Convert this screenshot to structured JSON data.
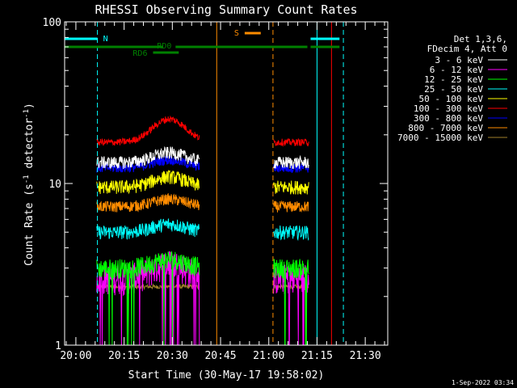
{
  "chart_data": {
    "type": "line",
    "title": "RHESSI Observing Summary Count Rates",
    "xlabel": "Start Time (30-May-17 19:58:02)",
    "ylabel_main": "Count Rate (s",
    "ylabel_sup1": "-1",
    "ylabel_mid": " detector",
    "ylabel_sup2": "-1",
    "ylabel_end": ")",
    "yscale": "log",
    "ylim": [
      1,
      100
    ],
    "xlim_minutes": [
      -3.5,
      97
    ],
    "y_ticks": [
      "1",
      "10",
      "100"
    ],
    "x_ticks": [
      {
        "label": "20:00",
        "m": 0
      },
      {
        "label": "20:15",
        "m": 15
      },
      {
        "label": "20:30",
        "m": 30
      },
      {
        "label": "20:45",
        "m": 45
      },
      {
        "label": "21:00",
        "m": 60
      },
      {
        "label": "21:15",
        "m": 75
      },
      {
        "label": "21:30",
        "m": 90
      }
    ],
    "legend_header": [
      "Det 1,3,6,",
      "FDecim 4, Att 0"
    ],
    "series": [
      {
        "name": "3 - 6 keV",
        "color": "#ffffff",
        "base": 13.5,
        "peak": 2.0,
        "noise": 0.09
      },
      {
        "name": "6 - 12 keV",
        "color": "#ff00ff",
        "base": 2.6,
        "peak": 0.6,
        "noise": 0.22
      },
      {
        "name": "12 - 25 keV",
        "color": "#00ff00",
        "base": 3.0,
        "peak": 0.4,
        "noise": 0.14
      },
      {
        "name": "25 - 50 keV",
        "color": "#00ffff",
        "base": 5.0,
        "peak": 0.6,
        "noise": 0.1
      },
      {
        "name": "50 - 100 keV",
        "color": "#ffff00",
        "base": 9.5,
        "peak": 1.5,
        "noise": 0.1
      },
      {
        "name": "100 - 300 keV",
        "color": "#ff0000",
        "base": 18.0,
        "peak": 7.0,
        "noise": 0.05
      },
      {
        "name": "300 - 800 keV",
        "color": "#0000ff",
        "base": 12.5,
        "peak": 1.5,
        "noise": 0.07
      },
      {
        "name": "800 - 7000 keV",
        "color": "#ff8c00",
        "base": 7.2,
        "peak": 0.8,
        "noise": 0.08
      },
      {
        "name": "7000 - 15000 keV",
        "color": "#a0802a",
        "base": 2.3,
        "peak": 0.0,
        "noise": 0.03
      }
    ],
    "segments_minutes": [
      [
        6.5,
        38.5
      ],
      [
        61.5,
        72.5
      ]
    ],
    "annotations": {
      "night_label": "N",
      "saa_label": "S",
      "rd0_label": "RD0",
      "rd6_label": "RD6",
      "night_bar": [
        -3.5,
        6.7
      ],
      "night_bar2": [
        73.0,
        82.0
      ],
      "saa_bar": [
        52.5,
        57.5
      ],
      "rd0_bars": [
        [
          -3.5,
          27
        ],
        [
          31,
          72
        ],
        [
          73,
          82
        ]
      ],
      "rd6_bar": [
        24,
        32
      ]
    },
    "vlines": [
      {
        "m": -3.5,
        "color": "#00ffff",
        "style": "solid"
      },
      {
        "m": 6.7,
        "color": "#00ffff",
        "style": "dashed"
      },
      {
        "m": 43.8,
        "color": "#ff8c00",
        "style": "solid"
      },
      {
        "m": 61.3,
        "color": "#ff8c00",
        "style": "dashed"
      },
      {
        "m": 75.0,
        "color": "#00ffff",
        "style": "solid"
      },
      {
        "m": 83.2,
        "color": "#00ffff",
        "style": "dashed"
      },
      {
        "m": 79.5,
        "color": "#ff0000",
        "style": "solid"
      }
    ]
  },
  "footer": {
    "timestamp": "1-Sep-2022 03:34"
  }
}
